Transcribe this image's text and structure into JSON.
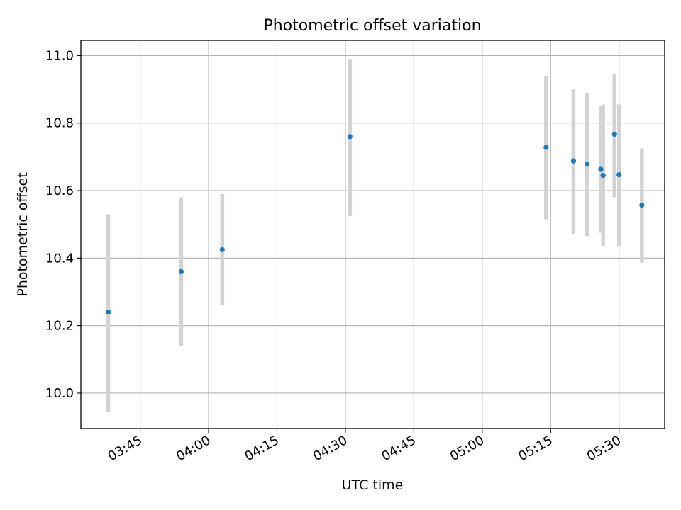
{
  "chart_data": {
    "type": "scatter",
    "title": "Photometric offset variation",
    "xlabel": "UTC time",
    "ylabel": "Photometric offset",
    "x_tick_labels": [
      "03:45",
      "04:00",
      "04:15",
      "04:30",
      "04:45",
      "05:00",
      "05:15",
      "05:30"
    ],
    "x_tick_minutes": [
      225,
      240,
      255,
      270,
      285,
      300,
      315,
      330
    ],
    "xlim": [
      "03:32",
      "05:40"
    ],
    "y_ticks": [
      10.0,
      10.2,
      10.4,
      10.6,
      10.8,
      11.0
    ],
    "y_tick_labels": [
      "10.0",
      "10.2",
      "10.4",
      "10.6",
      "10.8",
      "11.0"
    ],
    "ylim": [
      9.895,
      11.045
    ],
    "grid": true,
    "marker_color": "#1f77b4",
    "errorbar_color": "#d3d3d3",
    "points": [
      {
        "time": "03:38",
        "value": 10.24,
        "low": 9.945,
        "high": 10.53
      },
      {
        "time": "03:54",
        "value": 10.36,
        "low": 10.14,
        "high": 10.58
      },
      {
        "time": "04:03",
        "value": 10.425,
        "low": 10.26,
        "high": 10.59
      },
      {
        "time": "04:31",
        "value": 10.76,
        "low": 10.525,
        "high": 10.99
      },
      {
        "time": "05:14",
        "value": 10.728,
        "low": 10.515,
        "high": 10.94
      },
      {
        "time": "05:20",
        "value": 10.688,
        "low": 10.47,
        "high": 10.9
      },
      {
        "time": "05:23",
        "value": 10.678,
        "low": 10.465,
        "high": 10.89
      },
      {
        "time": "05:26",
        "value": 10.663,
        "low": 10.475,
        "high": 10.85
      },
      {
        "time": "05:26.5",
        "value": 10.645,
        "low": 10.435,
        "high": 10.855
      },
      {
        "time": "05:29",
        "value": 10.767,
        "low": 10.58,
        "high": 10.945
      },
      {
        "time": "05:30",
        "value": 10.647,
        "low": 10.435,
        "high": 10.855
      },
      {
        "time": "05:35",
        "value": 10.557,
        "low": 10.385,
        "high": 10.725
      }
    ]
  }
}
